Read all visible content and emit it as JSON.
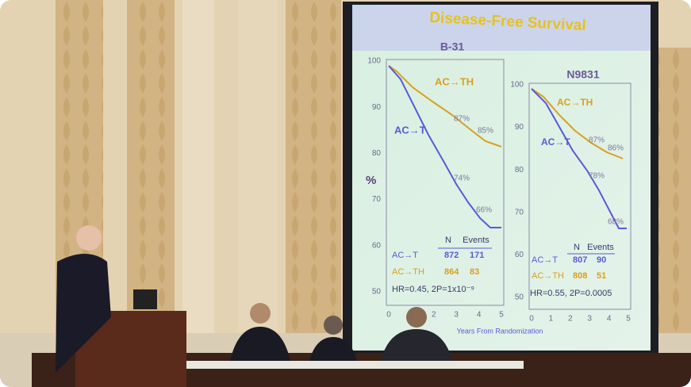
{
  "slide": {
    "title": "Disease-Free Survival",
    "y_axis_label": "%",
    "x_axis_label": "Years From Randomization",
    "panels": [
      {
        "title": "B-31",
        "yticks": [
          100,
          90,
          80,
          70,
          60,
          50
        ],
        "xticks": [
          0,
          1,
          2,
          3,
          4,
          5
        ],
        "annotations": [
          "AC→TH",
          "AC→T",
          "87%",
          "85%",
          "74%",
          "66%"
        ],
        "table": {
          "header": [
            "N",
            "Events"
          ],
          "rows": [
            [
              "AC→T",
              "872",
              "171"
            ],
            [
              "AC→TH",
              "864",
              "83"
            ]
          ]
        },
        "stats": "HR=0.45, 2P=1x10⁻⁹"
      },
      {
        "title": "N9831",
        "yticks": [
          100,
          90,
          80,
          70,
          60,
          50
        ],
        "xticks": [
          0,
          1,
          2,
          3,
          4,
          5
        ],
        "annotations": [
          "AC→TH",
          "AC→T",
          "87%",
          "86%",
          "78%",
          "68%"
        ],
        "table": {
          "header": [
            "N",
            "Events"
          ],
          "rows": [
            [
              "AC→T",
              "807",
              "90"
            ],
            [
              "AC→TH",
              "808",
              "51"
            ]
          ]
        },
        "stats": "HR=0.55, 2P=0.0005"
      }
    ]
  }
}
